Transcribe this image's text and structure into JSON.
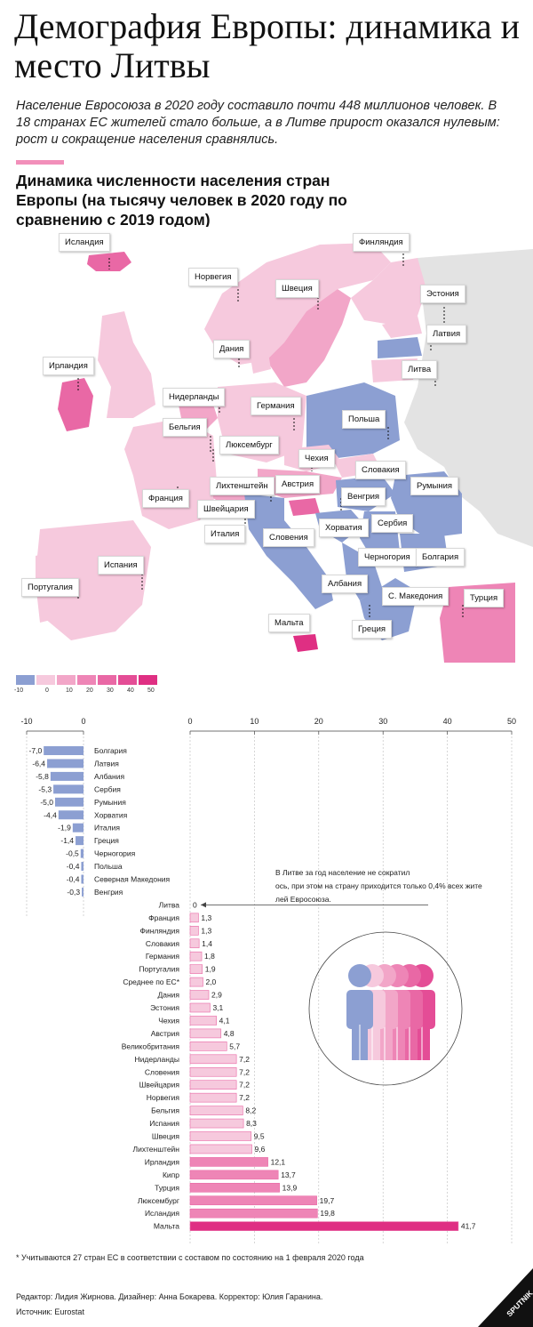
{
  "header": {
    "title": "Демография Европы: динамика и место Литвы",
    "lead": "Население Евросоюза в 2020 году составило почти 448 миллионов человек. В 18 странах ЕС жителей стало больше, а в Литве прирост оказался нулевым: рост и сокращение населения сравнялись.",
    "subtitle": "Динамика численности населения стран Европы (на тысячу человек в 2020 году по сравнению с 2019 годом)"
  },
  "map": {
    "labels": [
      "Исландия",
      "Финляндия",
      "Норвегия",
      "Швеция",
      "Эстония",
      "Латвия",
      "Дания",
      "Ирландия",
      "Литва",
      "Нидерланды",
      "Германия",
      "Польша",
      "Бельгия",
      "Люксембург",
      "Чехия",
      "Словакия",
      "Франция",
      "Лихтенштейн",
      "Австрия",
      "Венгрия",
      "Румыния",
      "Швейцария",
      "Италия",
      "Словения",
      "Хорватия",
      "Сербия",
      "Испания",
      "Черногория",
      "Болгария",
      "Португалия",
      "Албания",
      "С. Македония",
      "Турция",
      "Мальта",
      "Греция"
    ],
    "legend": {
      "ticks": [
        "-10",
        "0",
        "10",
        "20",
        "30",
        "40",
        "50"
      ],
      "colors": [
        "#8c9fd2",
        "#f6c9dd",
        "#f2a6c8",
        "#ee85b6",
        "#e968a5",
        "#e44d96",
        "#df2f83"
      ]
    }
  },
  "chart_data": {
    "type": "bar",
    "orientation": "horizontal",
    "categories": [
      "Болгария",
      "Латвия",
      "Албания",
      "Сербия",
      "Румыния",
      "Хорватия",
      "Италия",
      "Греция",
      "Черногория",
      "Польша",
      "Северная Македония",
      "Венгрия",
      "Литва",
      "Франция",
      "Финляндия",
      "Словакия",
      "Германия",
      "Португалия",
      "Среднее по ЕС*",
      "Дания",
      "Эстония",
      "Чехия",
      "Австрия",
      "Великобритания",
      "Нидерланды",
      "Словения",
      "Швейцария",
      "Норвегия",
      "Бельгия",
      "Испания",
      "Швеция",
      "Лихтенштейн",
      "Ирландия",
      "Кипр",
      "Турция",
      "Люксембург",
      "Исландия",
      "Мальта"
    ],
    "values": [
      -7.0,
      -6.4,
      -5.8,
      -5.3,
      -5.0,
      -4.4,
      -1.9,
      -1.4,
      -0.5,
      -0.4,
      -0.4,
      -0.3,
      0,
      1.3,
      1.3,
      1.4,
      1.8,
      1.9,
      2.0,
      2.9,
      3.1,
      4.1,
      4.8,
      5.7,
      7.2,
      7.2,
      7.2,
      7.2,
      8.2,
      8.3,
      9.5,
      9.6,
      12.1,
      13.7,
      13.9,
      19.7,
      19.8,
      41.7
    ],
    "value_labels": [
      "-7,0",
      "-6,4",
      "-5,8",
      "-5,3",
      "-5,0",
      "-4,4",
      "-1,9",
      "-1,4",
      "-0,5",
      "-0,4",
      "-0,4",
      "-0,3",
      "0",
      "1,3",
      "1,3",
      "1,4",
      "1,8",
      "1,9",
      "2,0",
      "2,9",
      "3,1",
      "4,1",
      "4,8",
      "5,7",
      "7,2",
      "7,2",
      "7,2",
      "7,2",
      "8,2",
      "8,3",
      "9,5",
      "9,6",
      "12,1",
      "13,7",
      "13,9",
      "19,7",
      "19,8",
      "41,7"
    ],
    "neg_axis_ticks": [
      "-10",
      "0"
    ],
    "pos_axis_ticks": [
      "0",
      "10",
      "20",
      "30",
      "40",
      "50"
    ],
    "xlim_negative": [
      -10,
      0
    ],
    "xlim_positive": [
      0,
      50
    ],
    "annotation": "В Литве за год население не сократилось, при этом на страну приходится только 0,4% всех жителей Евросоюза.",
    "colors": {
      "negative": "#8c9fd2",
      "low": "#f6c9dd",
      "mid": "#f2a6c8",
      "high": "#ee85b6",
      "max": "#df2f83"
    }
  },
  "footer": {
    "note": "* Учитываются 27 стран ЕС в соответствии с составом по состоянию на 1 февраля 2020 года",
    "credits": "Редактор: Лидия Жирнова. Дизайнер: Анна Бокарева. Корректор: Юлия Гаранина.",
    "source": "Источник: Eurostat",
    "logo": "SPUTNIK"
  }
}
